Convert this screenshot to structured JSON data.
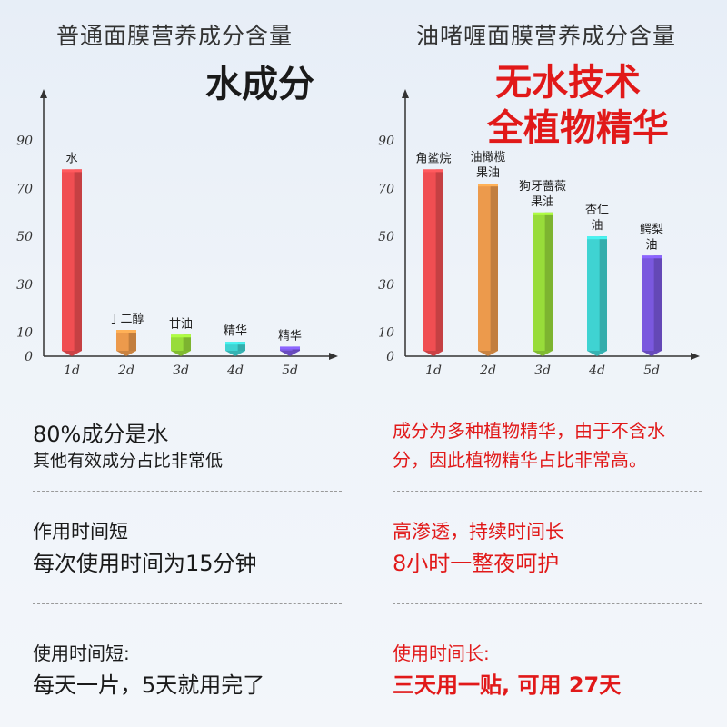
{
  "left": {
    "header": "普通面膜营养成分含量",
    "subtitle": "水成分",
    "notes": [
      {
        "line1": "80%成分是水",
        "line2": "其他有效成分占比非常低"
      },
      {
        "line1": "作用时间短",
        "line2": "每次使用时间为15分钟"
      },
      {
        "line1": "使用时间短:",
        "line2": "每天一片，5天就用完了"
      }
    ]
  },
  "right": {
    "header": "油啫喱面膜营养成分含量",
    "subtitle_line1": "无水技术",
    "subtitle_line2": "全植物精华",
    "notes": [
      {
        "line1": "成分为多种植物精华，由于不含水",
        "line2": "分，因此植物精华占比非常高。"
      },
      {
        "line1": "高渗透，持续时间长",
        "line2": "8小时一整夜呵护"
      },
      {
        "line1": "使用时间长:",
        "line2": "三天用一贴, 可用 27天"
      }
    ]
  },
  "colors": {
    "red": "#f04e52",
    "orange": "#ec9a4c",
    "green": "#98dc3a",
    "cyan": "#3fd3d2",
    "purple": "#7a58de",
    "accent_red": "#e11919"
  },
  "chart_data": [
    {
      "type": "bar",
      "categories": [
        "1d",
        "2d",
        "3d",
        "4d",
        "5d"
      ],
      "values": [
        78,
        11,
        9,
        6,
        4
      ],
      "bar_labels": [
        [
          "水"
        ],
        [
          "丁二醇"
        ],
        [
          "甘油"
        ],
        [
          "精华"
        ],
        [
          "精华"
        ]
      ],
      "bar_colors": [
        "#f04e52",
        "#ec9a4c",
        "#98dc3a",
        "#3fd3d2",
        "#7a58de"
      ],
      "yticks": [
        0,
        10,
        30,
        50,
        70,
        90
      ],
      "ylim": [
        0,
        110
      ],
      "grid": false
    },
    {
      "type": "bar",
      "categories": [
        "1d",
        "2d",
        "3d",
        "4d",
        "5d"
      ],
      "values": [
        78,
        72,
        60,
        50,
        42
      ],
      "bar_labels": [
        [
          "角鲨烷"
        ],
        [
          "油橄榄",
          "果油"
        ],
        [
          "狗牙蔷薇",
          "果油"
        ],
        [
          "杏仁",
          "油"
        ],
        [
          "鳄梨",
          "油"
        ]
      ],
      "bar_colors": [
        "#f04e52",
        "#ec9a4c",
        "#98dc3a",
        "#3fd3d2",
        "#7a58de"
      ],
      "yticks": [
        0,
        10,
        30,
        50,
        70,
        90
      ],
      "ylim": [
        0,
        110
      ],
      "grid": false
    }
  ]
}
